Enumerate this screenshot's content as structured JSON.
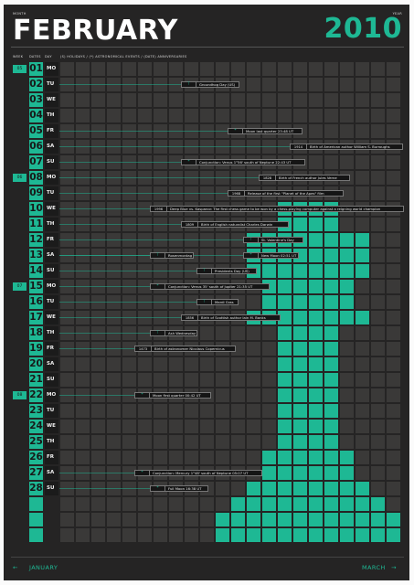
{
  "header": {
    "month_caption": "MONTH",
    "month": "FEBRUARY",
    "year_caption": "YEAR",
    "year": "2010",
    "col_week": "WEEK",
    "col_dates": "DATES",
    "col_day": "DAY",
    "legend": "(S) HOLIDAYS / (*) ASTRONOMICAL EVENTS / (DATE) ANNIVERSARIES"
  },
  "colors": {
    "accent": "#1eb894",
    "background": "#252424",
    "cell": "#3a3938"
  },
  "weeks": [
    {
      "label": "05",
      "row": 0
    },
    {
      "label": "06",
      "row": 7
    },
    {
      "label": "07",
      "row": 14
    },
    {
      "label": "08",
      "row": 21
    }
  ],
  "days": [
    {
      "date": "01",
      "day": "MO"
    },
    {
      "date": "02",
      "day": "TU"
    },
    {
      "date": "03",
      "day": "WE"
    },
    {
      "date": "04",
      "day": "TH"
    },
    {
      "date": "05",
      "day": "FR"
    },
    {
      "date": "06",
      "day": "SA"
    },
    {
      "date": "07",
      "day": "SU"
    },
    {
      "date": "08",
      "day": "MO"
    },
    {
      "date": "09",
      "day": "TU"
    },
    {
      "date": "10",
      "day": "WE"
    },
    {
      "date": "11",
      "day": "TH"
    },
    {
      "date": "12",
      "day": "FR"
    },
    {
      "date": "13",
      "day": "SA"
    },
    {
      "date": "14",
      "day": "SU"
    },
    {
      "date": "15",
      "day": "MO"
    },
    {
      "date": "16",
      "day": "TU"
    },
    {
      "date": "17",
      "day": "WE"
    },
    {
      "date": "18",
      "day": "TH"
    },
    {
      "date": "19",
      "day": "FR"
    },
    {
      "date": "20",
      "day": "SA"
    },
    {
      "date": "21",
      "day": "SU"
    },
    {
      "date": "22",
      "day": "MO"
    },
    {
      "date": "23",
      "day": "TU"
    },
    {
      "date": "24",
      "day": "WE"
    },
    {
      "date": "25",
      "day": "TH"
    },
    {
      "date": "26",
      "day": "FR"
    },
    {
      "date": "27",
      "day": "SA"
    },
    {
      "date": "28",
      "day": "SU"
    },
    {
      "date": "",
      "day": ""
    },
    {
      "date": "",
      "day": ""
    },
    {
      "date": "",
      "day": ""
    }
  ],
  "events": [
    {
      "row": 1,
      "marker": "⊤",
      "text": "Groundhog Day (US)",
      "col": 8,
      "anchor": 4
    },
    {
      "row": 4,
      "marker": "*",
      "text": "Moon last quarter 23:48 UT",
      "col": 11,
      "anchor": 4
    },
    {
      "row": 5,
      "marker": "1914",
      "text": "Birth of American author William S. Burroughs",
      "col": 15,
      "anchor": 4
    },
    {
      "row": 6,
      "marker": "*",
      "text": "Conjunction: Venus 1°56' south of Neptune 22:43 UT",
      "col": 8,
      "anchor": 4
    },
    {
      "row": 7,
      "marker": "1828",
      "text": "Birth of French author Jules Verne",
      "col": 13,
      "anchor": 4
    },
    {
      "row": 8,
      "marker": "1968",
      "text": "Release of the first \"Planet of the Apes\" film",
      "col": 11,
      "anchor": 4
    },
    {
      "row": 9,
      "marker": "1996",
      "text": "Deep Blue vs. Kasparov: The first chess game to be won by a chess-playing computer against a reigning world champion",
      "col": 6,
      "anchor": 4
    },
    {
      "row": 10,
      "marker": "1809",
      "text": "Birth of English naturalist Charles Darwin",
      "col": 8,
      "anchor": 4
    },
    {
      "row": 11,
      "marker": "⊤",
      "text": "St. Valentine's Day",
      "col": 12,
      "anchor": 5
    },
    {
      "row": 12,
      "marker": "⊤",
      "text": "Rosenmontag",
      "col": 6,
      "anchor": 5
    },
    {
      "row": 12,
      "marker": "*",
      "text": "New Moon 02:51 UT",
      "col": 12,
      "anchor": 5
    },
    {
      "row": 13,
      "marker": "⊤",
      "text": "Presidents Day (US)",
      "col": 9,
      "anchor": 4
    },
    {
      "row": 14,
      "marker": "*",
      "text": "Conjunction: Venus 35' south of Jupiter 21:35 UT",
      "col": 6,
      "anchor": 4
    },
    {
      "row": 15,
      "marker": "⊤",
      "text": "Mardi Gras",
      "col": 9,
      "anchor": 4
    },
    {
      "row": 16,
      "marker": "1856",
      "text": "Birth of Scottish author Iain M. Banks",
      "col": 8,
      "anchor": 4
    },
    {
      "row": 17,
      "marker": "⊤",
      "text": "Ash Wednesday",
      "col": 6,
      "anchor": 4
    },
    {
      "row": 18,
      "marker": "1473",
      "text": "Birth of astronomer Nicolaus Copernicus",
      "col": 5,
      "anchor": 4
    },
    {
      "row": 21,
      "marker": "*",
      "text": "Moon first quarter 00:42 UT",
      "col": 5,
      "anchor": 4
    },
    {
      "row": 26,
      "marker": "*",
      "text": "Conjunction: Mercury 1°48' south of Neptune 05:07 UT",
      "col": 5,
      "anchor": 4
    },
    {
      "row": 27,
      "marker": "*",
      "text": "Full Moon 16:38 UT",
      "col": 6,
      "anchor": 4
    }
  ],
  "piece_rows": [
    [
      18,
      19,
      20,
      21,
      -1,
      -1,
      -1
    ],
    [
      18,
      19,
      20,
      21,
      -1,
      -1,
      -1
    ],
    [
      16,
      17,
      18,
      19,
      20,
      21,
      22,
      23
    ],
    [
      16,
      17,
      18,
      19,
      20,
      21,
      22,
      23
    ],
    [
      16,
      17,
      18,
      19,
      20,
      21,
      22,
      23
    ],
    [
      17,
      18,
      19,
      20,
      21,
      22
    ],
    [
      17,
      18,
      19,
      20,
      21,
      22
    ],
    [
      16,
      17,
      18,
      19,
      20,
      21,
      22,
      23
    ],
    [
      18,
      19,
      20,
      21
    ],
    [
      18,
      19,
      20,
      21
    ],
    [
      18,
      19,
      20,
      21
    ],
    [
      18,
      19,
      20,
      21
    ],
    [
      18,
      19,
      20,
      21
    ],
    [
      18,
      19,
      20,
      21
    ],
    [
      18,
      19,
      20,
      21
    ],
    [
      18,
      19,
      20,
      21
    ],
    [
      17,
      18,
      19,
      20,
      21,
      22
    ],
    [
      17,
      18,
      19,
      20,
      21,
      22
    ],
    [
      16,
      17,
      18,
      19,
      20,
      21,
      22,
      23
    ],
    [
      15,
      16,
      17,
      18,
      19,
      20,
      21,
      22,
      23,
      24
    ],
    [
      14,
      15,
      16,
      17,
      18,
      19,
      20,
      21,
      22,
      23,
      24,
      25
    ],
    [
      14,
      15,
      16,
      17,
      18,
      19,
      20,
      21,
      22,
      23,
      24,
      25
    ]
  ],
  "footer": {
    "prev_arrow": "←",
    "prev": "JANUARY",
    "next": "MARCH",
    "next_arrow": "→"
  }
}
